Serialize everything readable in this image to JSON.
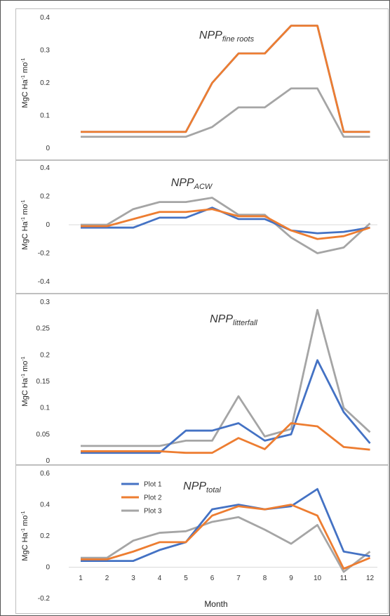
{
  "colors": {
    "plot1": "#4472C4",
    "plot2": "#ED7D31",
    "plot3": "#A5A5A5",
    "gridline": "#d9d9d9",
    "panel_border": "#bfbfbf"
  },
  "chart_data": [
    {
      "type": "line",
      "title_main": "NPP",
      "title_sub": "fine roots",
      "ylabel": "MgC Ha-1 mo-1",
      "ylim": [
        0,
        0.4
      ],
      "y_ticks": [
        "0",
        "0.1",
        "0.2",
        "0.3",
        "0.4"
      ],
      "x": [
        1,
        2,
        3,
        4,
        5,
        6,
        7,
        8,
        9,
        10,
        11,
        12
      ],
      "series": [
        {
          "color_key": "plot1",
          "values": [
            0.05,
            0.05,
            0.05,
            0.05,
            0.05,
            0.2,
            0.29,
            0.29,
            0.375,
            0.375,
            0.05,
            0.05
          ]
        },
        {
          "color_key": "plot2",
          "values": [
            0.05,
            0.05,
            0.05,
            0.05,
            0.05,
            0.2,
            0.29,
            0.29,
            0.375,
            0.375,
            0.05,
            0.05
          ]
        },
        {
          "color_key": "plot3",
          "values": [
            0.035,
            0.035,
            0.035,
            0.035,
            0.035,
            0.065,
            0.125,
            0.125,
            0.183,
            0.183,
            0.035,
            0.035
          ]
        }
      ],
      "grid": false,
      "zero_line": false
    },
    {
      "type": "line",
      "title_main": "NPP",
      "title_sub": "ACW",
      "ylabel": "MgC Ha-1 mo-1",
      "ylim": [
        -0.4,
        0.4
      ],
      "y_ticks": [
        "-0.4",
        "-0.2",
        "0",
        "0.2",
        "0.4"
      ],
      "x": [
        1,
        2,
        3,
        4,
        5,
        6,
        7,
        8,
        9,
        10,
        11,
        12
      ],
      "series": [
        {
          "color_key": "plot1",
          "values": [
            -0.02,
            -0.02,
            -0.02,
            0.05,
            0.05,
            0.12,
            0.04,
            0.04,
            -0.04,
            -0.06,
            -0.05,
            -0.02
          ]
        },
        {
          "color_key": "plot2",
          "values": [
            -0.01,
            -0.01,
            0.04,
            0.09,
            0.09,
            0.11,
            0.06,
            0.06,
            -0.04,
            -0.1,
            -0.08,
            -0.02
          ]
        },
        {
          "color_key": "plot3",
          "values": [
            0.0,
            0.0,
            0.11,
            0.16,
            0.16,
            0.19,
            0.07,
            0.07,
            -0.09,
            -0.2,
            -0.16,
            0.01
          ]
        }
      ],
      "grid": false,
      "zero_line": true
    },
    {
      "type": "line",
      "title_main": "NPP",
      "title_sub": "litterfall",
      "ylabel": "MgC Ha-1 mo-1",
      "ylim": [
        0,
        0.3
      ],
      "y_ticks": [
        "0",
        "0.05",
        "0.1",
        "0.15",
        "0.2",
        "0.25",
        "0.3"
      ],
      "x": [
        1,
        2,
        3,
        4,
        5,
        6,
        7,
        8,
        9,
        10,
        11,
        12
      ],
      "series": [
        {
          "color_key": "plot1",
          "values": [
            0.015,
            0.015,
            0.015,
            0.015,
            0.057,
            0.057,
            0.071,
            0.038,
            0.05,
            0.19,
            0.092,
            0.033
          ]
        },
        {
          "color_key": "plot2",
          "values": [
            0.018,
            0.018,
            0.018,
            0.018,
            0.015,
            0.015,
            0.043,
            0.022,
            0.071,
            0.065,
            0.026,
            0.021
          ]
        },
        {
          "color_key": "plot3",
          "values": [
            0.028,
            0.028,
            0.028,
            0.028,
            0.038,
            0.038,
            0.122,
            0.046,
            0.06,
            0.285,
            0.1,
            0.054
          ]
        }
      ],
      "grid": false,
      "zero_line": false
    },
    {
      "type": "line",
      "title_main": "NPP",
      "title_sub": "total",
      "ylabel": "MgC Ha-1 mo-1",
      "xlabel": "Month",
      "ylim": [
        -0.2,
        0.6
      ],
      "y_ticks": [
        "-0.2",
        "0",
        "0.2",
        "0.4",
        "0.6"
      ],
      "x": [
        1,
        2,
        3,
        4,
        5,
        6,
        7,
        8,
        9,
        10,
        11,
        12
      ],
      "x_ticks": [
        "1",
        "2",
        "3",
        "4",
        "5",
        "6",
        "7",
        "8",
        "9",
        "10",
        "11",
        "12"
      ],
      "legend": {
        "placement": "top-left"
      },
      "series": [
        {
          "name": "Plot 1",
          "color_key": "plot1",
          "values": [
            0.04,
            0.04,
            0.04,
            0.11,
            0.16,
            0.37,
            0.4,
            0.37,
            0.39,
            0.5,
            0.1,
            0.07
          ]
        },
        {
          "name": "Plot 2",
          "color_key": "plot2",
          "values": [
            0.05,
            0.05,
            0.1,
            0.16,
            0.16,
            0.33,
            0.39,
            0.37,
            0.4,
            0.33,
            -0.01,
            0.06
          ]
        },
        {
          "name": "Plot 3",
          "color_key": "plot3",
          "values": [
            0.06,
            0.06,
            0.17,
            0.22,
            0.23,
            0.29,
            0.32,
            0.24,
            0.15,
            0.27,
            -0.03,
            0.1
          ]
        }
      ],
      "grid": false,
      "zero_line": true
    }
  ]
}
